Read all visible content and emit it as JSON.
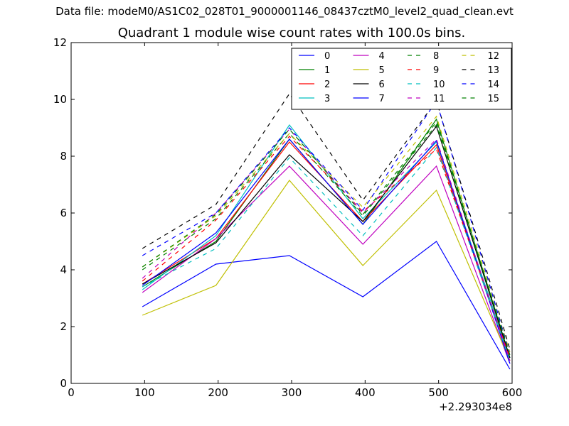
{
  "figure": {
    "suptitle": "Data file: modeM0/AS1C02_028T01_9000001146_08437cztM0_level2_quad_clean.evt"
  },
  "chart_data": {
    "type": "line",
    "title": "Quadrant 1 module wise count rates with 100.0s bins.",
    "xlabel": "",
    "ylabel": "",
    "xlim": [
      0,
      600
    ],
    "ylim": [
      0,
      12
    ],
    "x_offset_label": "+2.293034e8",
    "xticks": [
      0,
      100,
      200,
      300,
      400,
      500,
      600
    ],
    "yticks": [
      0,
      2,
      4,
      6,
      8,
      10,
      12
    ],
    "legend_position": "top-right",
    "x": [
      97,
      197,
      297,
      397,
      497,
      597
    ],
    "series": [
      {
        "name": "0",
        "color": "#0000ff",
        "dash": "solid",
        "values": [
          2.7,
          4.2,
          4.5,
          3.05,
          5.0,
          0.5
        ]
      },
      {
        "name": "1",
        "color": "#008000",
        "dash": "solid",
        "values": [
          3.4,
          5.0,
          8.6,
          5.6,
          9.3,
          0.9
        ]
      },
      {
        "name": "2",
        "color": "#ff0000",
        "dash": "solid",
        "values": [
          3.5,
          5.1,
          8.5,
          5.7,
          8.4,
          0.8
        ]
      },
      {
        "name": "3",
        "color": "#00bfbf",
        "dash": "solid",
        "values": [
          3.3,
          5.2,
          9.1,
          5.8,
          8.5,
          0.9
        ]
      },
      {
        "name": "4",
        "color": "#bf00bf",
        "dash": "solid",
        "values": [
          3.2,
          5.1,
          7.65,
          4.9,
          7.65,
          0.7
        ]
      },
      {
        "name": "5",
        "color": "#bfbf00",
        "dash": "solid",
        "values": [
          2.4,
          3.45,
          7.15,
          4.15,
          6.8,
          0.8
        ]
      },
      {
        "name": "6",
        "color": "#000000",
        "dash": "solid",
        "values": [
          3.5,
          4.95,
          8.05,
          5.7,
          9.05,
          0.9
        ]
      },
      {
        "name": "7",
        "color": "#0000ff",
        "dash": "solid",
        "values": [
          3.45,
          5.3,
          8.6,
          5.6,
          8.55,
          0.7
        ]
      },
      {
        "name": "8",
        "color": "#008000",
        "dash": "dashed",
        "values": [
          4.0,
          5.8,
          8.8,
          5.9,
          9.1,
          1.0
        ]
      },
      {
        "name": "9",
        "color": "#ff0000",
        "dash": "dashed",
        "values": [
          3.6,
          5.75,
          8.7,
          6.05,
          8.25,
          0.9
        ]
      },
      {
        "name": "10",
        "color": "#00bfbf",
        "dash": "dashed",
        "values": [
          3.4,
          4.75,
          7.95,
          5.2,
          8.3,
          0.8
        ]
      },
      {
        "name": "11",
        "color": "#bf00bf",
        "dash": "dashed",
        "values": [
          3.7,
          6.0,
          8.95,
          6.0,
          8.6,
          0.8
        ]
      },
      {
        "name": "12",
        "color": "#bfbf00",
        "dash": "dashed",
        "values": [
          4.1,
          5.9,
          8.8,
          6.2,
          9.4,
          1.1
        ]
      },
      {
        "name": "13",
        "color": "#000000",
        "dash": "dashed",
        "values": [
          4.75,
          6.3,
          10.2,
          6.45,
          9.95,
          1.2
        ]
      },
      {
        "name": "14",
        "color": "#0000ff",
        "dash": "dashed",
        "values": [
          4.5,
          6.0,
          9.0,
          6.1,
          9.95,
          1.0
        ]
      },
      {
        "name": "15",
        "color": "#008000",
        "dash": "dashed",
        "values": [
          4.1,
          5.95,
          8.95,
          5.95,
          9.2,
          1.0
        ]
      }
    ]
  }
}
